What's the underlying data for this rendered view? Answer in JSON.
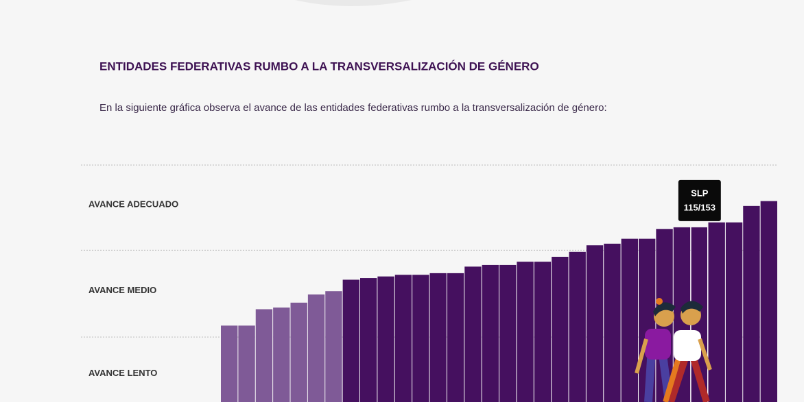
{
  "header": {
    "title": "ENTIDADES FEDERATIVAS RUMBO A LA TRANSVERSALIZACIÓN DE GÉNERO",
    "intro": "En la siguiente gráfica observa el avance de las entidades federativas rumbo a la transversalización de género:"
  },
  "chart_data": {
    "type": "bar",
    "categories": [
      null,
      null,
      null,
      null,
      null,
      null,
      null,
      null,
      null,
      null,
      null,
      null,
      null,
      null,
      null,
      null,
      null,
      null,
      null,
      null,
      null,
      null,
      null,
      null,
      null,
      null,
      null,
      "SLP",
      null,
      null,
      null,
      null
    ],
    "values": [
      55,
      55,
      65,
      66,
      69,
      74,
      76,
      83,
      84,
      85,
      86,
      86,
      87,
      87,
      91,
      92,
      92,
      94,
      94,
      97,
      100,
      104,
      105,
      108,
      108,
      114,
      115,
      115,
      118,
      118,
      128,
      131
    ],
    "value_labels": [
      null,
      null,
      null,
      null,
      null,
      null,
      null,
      null,
      null,
      null,
      null,
      null,
      null,
      null,
      null,
      null,
      null,
      null,
      null,
      null,
      null,
      null,
      null,
      null,
      null,
      null,
      null,
      "115/153",
      null,
      null,
      null,
      null
    ],
    "colors": [
      "#7f5a97",
      "#7f5a97",
      "#7f5a97",
      "#7f5a97",
      "#7f5a97",
      "#7f5a97",
      "#7f5a97",
      "#45105f",
      "#45105f",
      "#45105f",
      "#45105f",
      "#45105f",
      "#45105f",
      "#45105f",
      "#45105f",
      "#45105f",
      "#45105f",
      "#45105f",
      "#45105f",
      "#45105f",
      "#45105f",
      "#45105f",
      "#45105f",
      "#45105f",
      "#45105f",
      "#45105f",
      "#45105f",
      "#45105f",
      "#45105f",
      "#45105f",
      "#45105f",
      "#45105f"
    ],
    "ylim": [
      0,
      153
    ],
    "bands": [
      {
        "label": "AVANCE ADECUADO",
        "from": 101,
        "to": 153
      },
      {
        "label": "AVANCE MEDIO",
        "from": 48,
        "to": 101
      },
      {
        "label": "AVANCE LENTO",
        "from": 0,
        "to": 48
      }
    ]
  }
}
